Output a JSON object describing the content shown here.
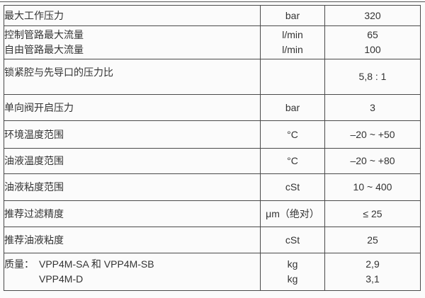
{
  "colors": {
    "border": "#4a4a4a",
    "text": "#333333",
    "background": "#fbfbfb"
  },
  "table": {
    "rows": [
      {
        "label_lines": [
          "最大工作压力"
        ],
        "unit_lines": [
          "bar"
        ],
        "value_lines": [
          "320"
        ]
      },
      {
        "label_lines": [
          "控制管路最大流量",
          "自由管路最大流量"
        ],
        "unit_lines": [
          "l/min",
          "l/min"
        ],
        "value_lines": [
          "65",
          "100"
        ]
      },
      {
        "label_lines": [
          "锁紧腔与先导口的压力比"
        ],
        "unit_lines": [
          ""
        ],
        "value_lines": [
          "5,8 : 1"
        ]
      },
      {
        "label_lines": [
          "单向阀开启压力"
        ],
        "unit_lines": [
          "bar"
        ],
        "value_lines": [
          "3"
        ]
      },
      {
        "label_lines": [
          "环境温度范围"
        ],
        "unit_lines": [
          "°C"
        ],
        "value_lines": [
          "–20 ~ +50"
        ]
      },
      {
        "label_lines": [
          "油液温度范围"
        ],
        "unit_lines": [
          "°C"
        ],
        "value_lines": [
          "–20 ~ +80"
        ]
      },
      {
        "label_lines": [
          "油液粘度范围"
        ],
        "unit_lines": [
          "cSt"
        ],
        "value_lines": [
          "10 ~ 400"
        ]
      },
      {
        "label_lines": [
          "推荐过滤精度"
        ],
        "unit_lines": [
          "μm（绝对）"
        ],
        "value_lines": [
          "≤ 25"
        ]
      },
      {
        "label_lines": [
          "推荐油液粘度"
        ],
        "unit_lines": [
          "cSt"
        ],
        "value_lines": [
          "25"
        ]
      },
      {
        "label_prefix": "质量：",
        "label_lines": [
          "VPP4M-SA 和 VPP4M-SB",
          "VPP4M-D"
        ],
        "unit_lines": [
          "kg",
          "kg"
        ],
        "value_lines": [
          "2,9",
          "3,1"
        ]
      }
    ]
  }
}
